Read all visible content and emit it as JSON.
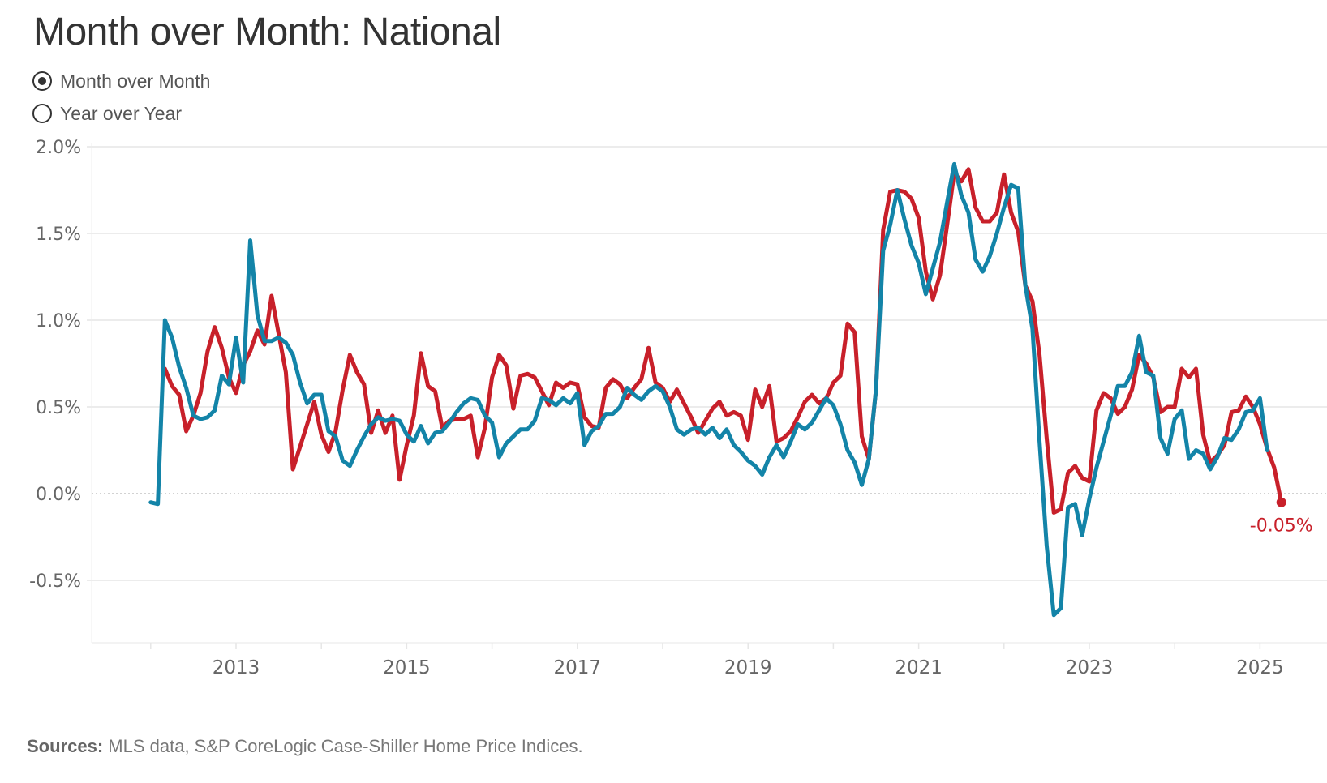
{
  "title": "Month over Month:  National",
  "toggle": {
    "options": [
      {
        "label": "Month over Month",
        "selected": true
      },
      {
        "label": "Year over Year",
        "selected": false
      }
    ]
  },
  "source": {
    "label": "Sources:",
    "text": "MLS data, S&P CoreLogic Case-Shiller Home Price Indices."
  },
  "colors": {
    "red": "#c8202a",
    "blue": "#1384a8",
    "grid": "#ececec",
    "axis_text": "#666666"
  },
  "chart_data": {
    "type": "line",
    "title": "Month over Month:  National",
    "xlabel": "",
    "ylabel": "",
    "ylim": [
      -0.8,
      2.05
    ],
    "xlim": [
      "2011-09",
      "2025-12"
    ],
    "yticks": [
      2.0,
      1.5,
      1.0,
      0.5,
      0.0,
      -0.5
    ],
    "ytick_labels": [
      "2.0%",
      "1.5%",
      "1.0%",
      "0.5%",
      "0.0%",
      "-0.5%"
    ],
    "xticks": [
      2013,
      2015,
      2017,
      2019,
      2021,
      2023,
      2025
    ],
    "xtick_labels": [
      "2013",
      "2015",
      "2017",
      "2019",
      "2021",
      "2023",
      "2025"
    ],
    "grid": true,
    "zero_line": "dotted",
    "units": "percent",
    "annotation": {
      "series": "Case-Shiller",
      "date": "2025-04",
      "value": -0.05,
      "label": "-0.05%"
    },
    "series": [
      {
        "name": "MLS",
        "color": "#1384a8",
        "start": "2012-01",
        "values": [
          -0.05,
          -0.06,
          1.0,
          0.9,
          0.73,
          0.61,
          0.45,
          0.43,
          0.44,
          0.48,
          0.68,
          0.63,
          0.9,
          0.64,
          1.46,
          1.03,
          0.88,
          0.88,
          0.9,
          0.87,
          0.8,
          0.64,
          0.52,
          0.57,
          0.57,
          0.36,
          0.33,
          0.19,
          0.16,
          0.25,
          0.33,
          0.4,
          0.44,
          0.42,
          0.43,
          0.42,
          0.34,
          0.3,
          0.39,
          0.29,
          0.35,
          0.36,
          0.41,
          0.47,
          0.52,
          0.55,
          0.54,
          0.45,
          0.41,
          0.21,
          0.29,
          0.33,
          0.37,
          0.37,
          0.42,
          0.55,
          0.54,
          0.51,
          0.55,
          0.52,
          0.58,
          0.28,
          0.36,
          0.39,
          0.46,
          0.46,
          0.5,
          0.61,
          0.57,
          0.54,
          0.59,
          0.62,
          0.59,
          0.5,
          0.37,
          0.34,
          0.37,
          0.38,
          0.34,
          0.38,
          0.32,
          0.37,
          0.28,
          0.24,
          0.19,
          0.16,
          0.11,
          0.21,
          0.28,
          0.21,
          0.3,
          0.4,
          0.37,
          0.41,
          0.48,
          0.55,
          0.51,
          0.4,
          0.25,
          0.18,
          0.05,
          0.2,
          0.6,
          1.4,
          1.55,
          1.75,
          1.58,
          1.43,
          1.33,
          1.15,
          1.3,
          1.45,
          1.68,
          1.9,
          1.72,
          1.62,
          1.35,
          1.28,
          1.37,
          1.5,
          1.65,
          1.78,
          1.76,
          1.2,
          0.95,
          0.3,
          -0.3,
          -0.7,
          -0.66,
          -0.08,
          -0.06,
          -0.24,
          -0.03,
          0.15,
          0.3,
          0.45,
          0.62,
          0.62,
          0.7,
          0.91,
          0.7,
          0.68,
          0.32,
          0.23,
          0.43,
          0.48,
          0.2,
          0.25,
          0.23,
          0.14,
          0.21,
          0.32,
          0.31,
          0.37,
          0.47,
          0.48,
          0.55,
          0.25
        ]
      },
      {
        "name": "Case-Shiller",
        "color": "#c8202a",
        "start": "2012-03",
        "values": [
          0.72,
          0.62,
          0.57,
          0.36,
          0.45,
          0.58,
          0.82,
          0.96,
          0.84,
          0.67,
          0.58,
          0.74,
          0.82,
          0.94,
          0.86,
          1.14,
          0.92,
          0.7,
          0.14,
          0.27,
          0.4,
          0.53,
          0.34,
          0.24,
          0.36,
          0.6,
          0.8,
          0.7,
          0.63,
          0.35,
          0.48,
          0.35,
          0.45,
          0.08,
          0.28,
          0.45,
          0.81,
          0.62,
          0.59,
          0.38,
          0.42,
          0.43,
          0.43,
          0.45,
          0.21,
          0.38,
          0.67,
          0.8,
          0.74,
          0.49,
          0.68,
          0.69,
          0.67,
          0.59,
          0.51,
          0.64,
          0.61,
          0.64,
          0.63,
          0.44,
          0.39,
          0.38,
          0.61,
          0.66,
          0.63,
          0.55,
          0.61,
          0.66,
          0.84,
          0.64,
          0.61,
          0.53,
          0.6,
          0.52,
          0.44,
          0.35,
          0.42,
          0.49,
          0.53,
          0.45,
          0.47,
          0.45,
          0.31,
          0.6,
          0.5,
          0.62,
          0.3,
          0.32,
          0.36,
          0.44,
          0.53,
          0.57,
          0.52,
          0.55,
          0.64,
          0.68,
          0.98,
          0.93,
          0.33,
          0.2,
          0.6,
          1.52,
          1.74,
          1.75,
          1.74,
          1.7,
          1.59,
          1.28,
          1.12,
          1.26,
          1.55,
          1.85,
          1.8,
          1.87,
          1.65,
          1.57,
          1.57,
          1.62,
          1.84,
          1.62,
          1.51,
          1.2,
          1.11,
          0.8,
          0.32,
          -0.11,
          -0.09,
          0.12,
          0.16,
          0.09,
          0.07,
          0.48,
          0.58,
          0.55,
          0.46,
          0.5,
          0.6,
          0.8,
          0.75,
          0.67,
          0.47,
          0.5,
          0.5,
          0.72,
          0.67,
          0.72,
          0.34,
          0.18,
          0.22,
          0.28,
          0.47,
          0.48,
          0.56,
          0.5,
          0.4,
          0.26,
          0.15,
          -0.05
        ]
      }
    ]
  }
}
